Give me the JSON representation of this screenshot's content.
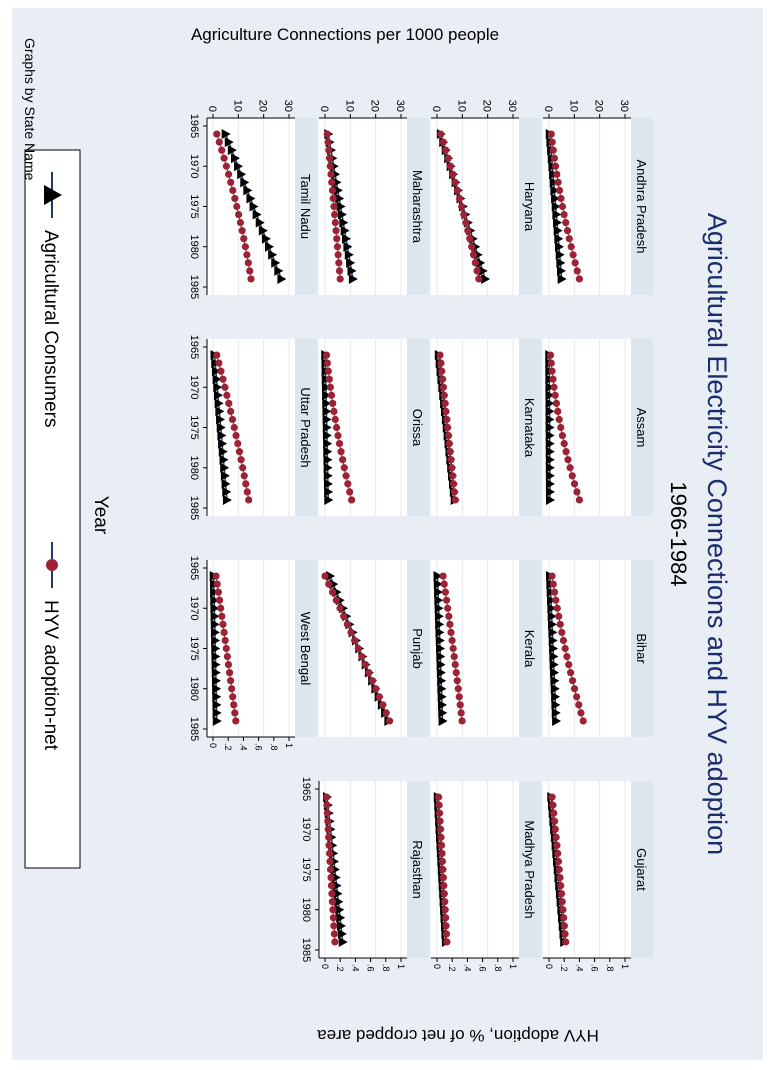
{
  "chart_data": {
    "type": "line",
    "title": "Agricultural Electricity Connections and HYV adoption",
    "subtitle": "1966-1984",
    "xlabel": "Year",
    "ylabel_left": "Agriculture Connections per 1000 people",
    "ylabel_right": "HYV adoption, % of net cropped area",
    "note": "Graphs by State Name",
    "rotation": "image rotated 90 degrees clockwise",
    "x_ticks": [
      "1965",
      "1970",
      "1975",
      "1980",
      "1985"
    ],
    "left_ticks": [
      "0",
      "10",
      "20",
      "30"
    ],
    "right_ticks": [
      "0",
      ".2",
      ".4",
      ".6",
      ".8",
      "1"
    ],
    "left_ylim": [
      0,
      30
    ],
    "right_ylim": [
      0,
      1
    ],
    "xlim": [
      1965,
      1985
    ],
    "legend": {
      "position": "bottom",
      "entries": [
        "Agricultural Consumers",
        "HYV adoption-net"
      ]
    },
    "colors": {
      "title": "#1a2e6e",
      "panel_bg": "#ffffff",
      "strip_bg": "#dce6ee",
      "frame_bg": "#e9eef4",
      "grid": "#e3e9ef",
      "consumers": "#1b3a66",
      "hyv": "#9b2335"
    },
    "x": [
      1966,
      1967,
      1968,
      1969,
      1970,
      1971,
      1972,
      1973,
      1974,
      1975,
      1976,
      1977,
      1978,
      1979,
      1980,
      1981,
      1982,
      1983,
      1984
    ],
    "panels": [
      {
        "state": "Andhra Pradesh",
        "consumers": {
          "start": 0.3,
          "end": 5.0
        },
        "hyv": {
          "start": 0.03,
          "mid": 0.14,
          "end": 0.4
        }
      },
      {
        "state": "Assam",
        "consumers": {
          "start": 0.1,
          "end": 0.4
        },
        "hyv": {
          "start": 0.02,
          "mid": 0.1,
          "end": 0.4
        }
      },
      {
        "state": "Bihar",
        "consumers": {
          "start": 0.4,
          "end": 2.8
        },
        "hyv": {
          "start": 0.04,
          "mid": 0.18,
          "end": 0.45
        }
      },
      {
        "state": "Gujarat",
        "consumers": {
          "start": 0.9,
          "end": 6.0
        },
        "hyv": {
          "start": 0.04,
          "mid": 0.14,
          "end": 0.22
        }
      },
      {
        "state": "Haryana",
        "consumers": {
          "start": 1.5,
          "end": 19.0
        },
        "hyv": {
          "start": 0.05,
          "mid": 0.35,
          "end": 0.55
        }
      },
      {
        "state": "Karnataka",
        "consumers": {
          "start": 0.7,
          "end": 7.0
        },
        "hyv": {
          "start": 0.04,
          "mid": 0.14,
          "end": 0.24
        }
      },
      {
        "state": "Kerala",
        "consumers": {
          "start": 0.2,
          "end": 2.2
        },
        "hyv": {
          "start": 0.08,
          "mid": 0.22,
          "end": 0.33
        }
      },
      {
        "state": "Madhya Pradesh",
        "consumers": {
          "start": 0.3,
          "end": 3.5
        },
        "hyv": {
          "start": 0.02,
          "mid": 0.08,
          "end": 0.13
        }
      },
      {
        "state": "Maharashtra",
        "consumers": {
          "start": 1.3,
          "end": 11.0
        },
        "hyv": {
          "start": 0.03,
          "mid": 0.12,
          "end": 0.2
        }
      },
      {
        "state": "Orissa",
        "consumers": {
          "start": 0.1,
          "end": 1.3
        },
        "hyv": {
          "start": 0.02,
          "mid": 0.12,
          "end": 0.35
        }
      },
      {
        "state": "Punjab",
        "consumers": {
          "start": 2.0,
          "end": 25.0
        },
        "hyv": {
          "start": 0.0,
          "mid": 0.45,
          "end": 0.85
        }
      },
      {
        "state": "Rajasthan",
        "consumers": {
          "start": 0.8,
          "end": 7.0
        },
        "hyv": {
          "start": 0.02,
          "mid": 0.07,
          "end": 0.13
        }
      },
      {
        "state": "Tamil Nadu",
        "consumers": {
          "start": 5.0,
          "end": 27.0
        },
        "hyv": {
          "start": 0.05,
          "mid": 0.35,
          "end": 0.5
        }
      },
      {
        "state": "Uttar Pradesh",
        "consumers": {
          "start": 0.6,
          "end": 5.5
        },
        "hyv": {
          "start": 0.05,
          "mid": 0.3,
          "end": 0.47
        }
      },
      {
        "state": "West Bengal",
        "consumers": {
          "start": 0.3,
          "end": 1.5
        },
        "hyv": {
          "start": 0.04,
          "mid": 0.18,
          "end": 0.3
        }
      }
    ]
  }
}
